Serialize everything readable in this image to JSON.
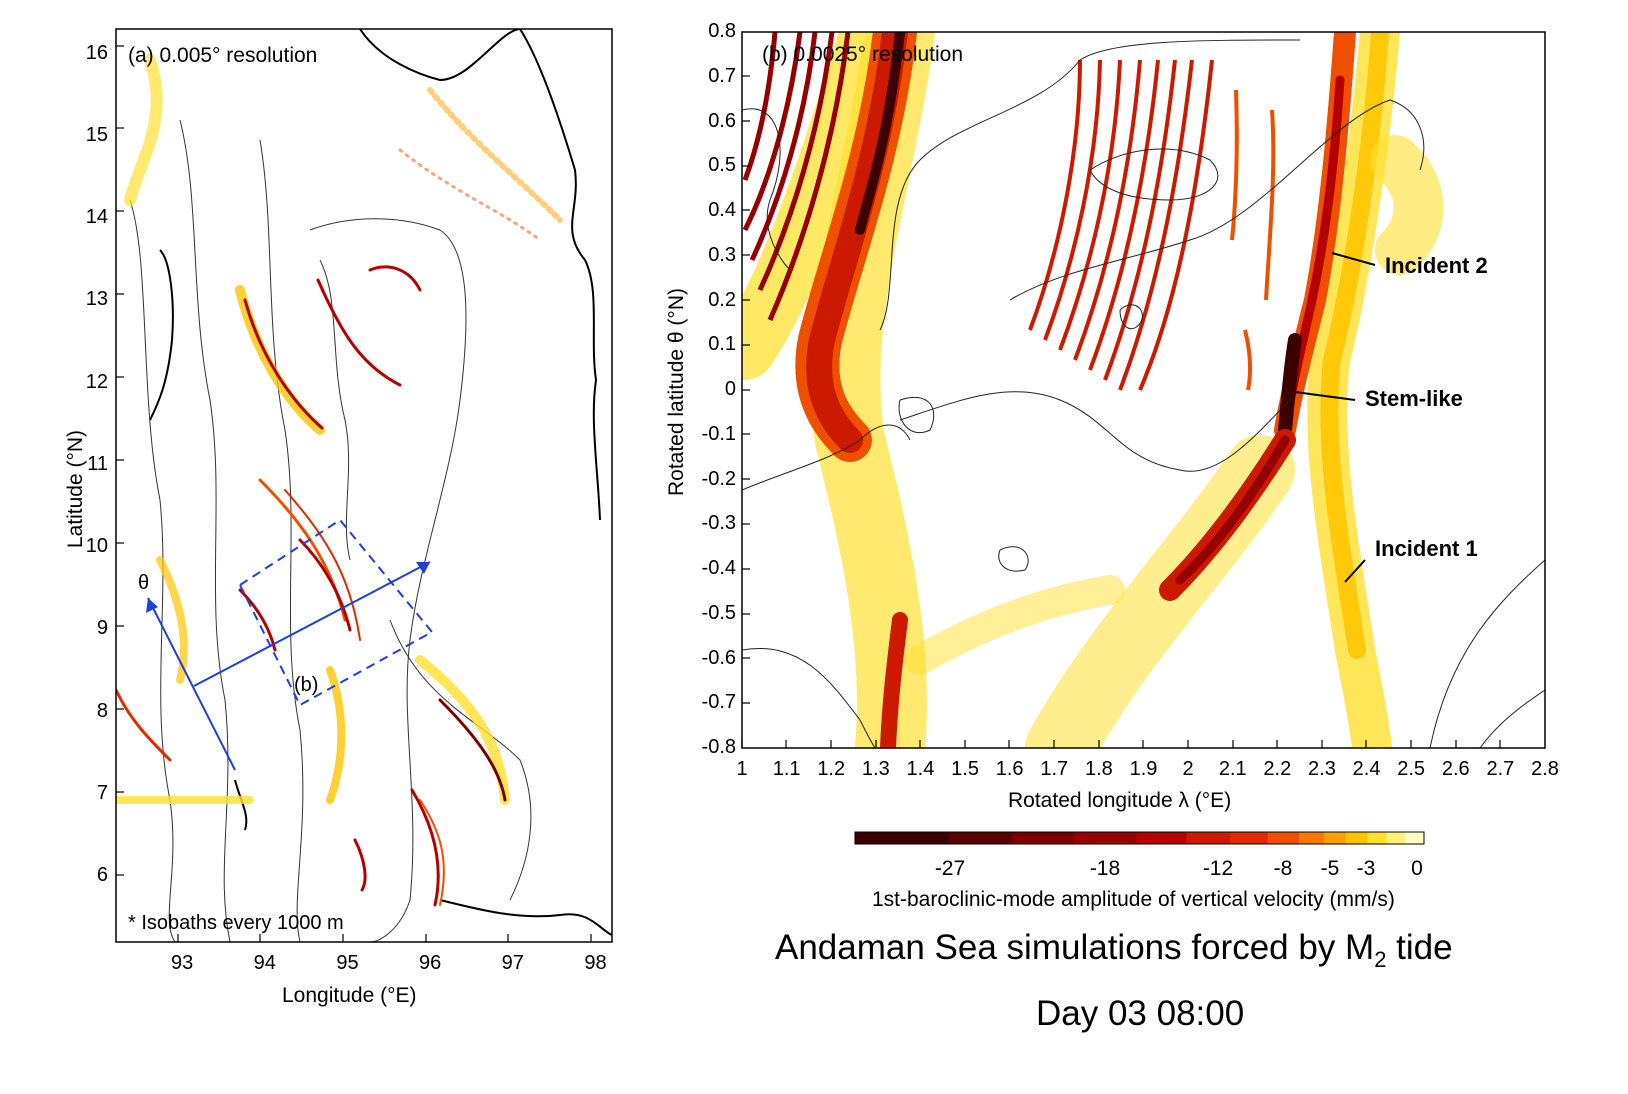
{
  "chart_data": [
    {
      "type": "heatmap",
      "panel_label": "(a) 0.005° resolution",
      "xlabel": "Longitude (°E)",
      "ylabel": "Latitude (°N)",
      "xlim": [
        92.2,
        98.2
      ],
      "ylim": [
        5.2,
        16.3
      ],
      "x_ticks": [
        93,
        94,
        95,
        96,
        97,
        98
      ],
      "y_ticks": [
        6,
        7,
        8,
        9,
        10,
        11,
        12,
        13,
        14,
        15,
        16
      ],
      "footnote": "* Isobaths every 1000 m",
      "box_label": "(b)",
      "axis_symbol": "θ"
    },
    {
      "type": "heatmap",
      "panel_label": "(b) 0.0025° resolution",
      "xlabel": "Rotated longitude λ (°E)",
      "ylabel": "Rotated latitude θ (°N)",
      "xlim": [
        1,
        2.8
      ],
      "ylim": [
        -0.8,
        0.8
      ],
      "x_ticks": [
        "1",
        "1.1",
        "1.2",
        "1.3",
        "1.4",
        "1.5",
        "1.6",
        "1.7",
        "1.8",
        "1.9",
        "2",
        "2.1",
        "2.2",
        "2.3",
        "2.4",
        "2.5",
        "2.6",
        "2.7",
        "2.8"
      ],
      "y_ticks": [
        "0.8",
        "0.7",
        "0.6",
        "0.5",
        "0.4",
        "0.3",
        "0.2",
        "0.1",
        "0",
        "-0.1",
        "-0.2",
        "-0.3",
        "-0.4",
        "-0.5",
        "-0.6",
        "-0.7",
        "-0.8"
      ],
      "annotations": [
        {
          "text": "Incident 2",
          "x": 2.32,
          "y": 0.3
        },
        {
          "text": "Stem-like",
          "x": 2.25,
          "y": -0.02
        },
        {
          "text": "Incident 1",
          "x": 2.36,
          "y": -0.44
        }
      ]
    }
  ],
  "colorbar": {
    "ticks": [
      "-27",
      "-18",
      "-12",
      "-8",
      "-5",
      "-3",
      "0"
    ],
    "label": "1st-baroclinic-mode amplitude of vertical velocity (mm/s)",
    "colors": [
      "#3c0000",
      "#5a0000",
      "#7a0000",
      "#960000",
      "#b40000",
      "#cc1a00",
      "#e02a00",
      "#ee5000",
      "#f57a00",
      "#fca000",
      "#ffc400",
      "#ffe030",
      "#fff27a",
      "#ffffc8"
    ]
  },
  "title": {
    "main": "Andaman Sea simulations forced by M",
    "sub": "2",
    "tail": " tide",
    "time": "Day 03 08:00"
  }
}
